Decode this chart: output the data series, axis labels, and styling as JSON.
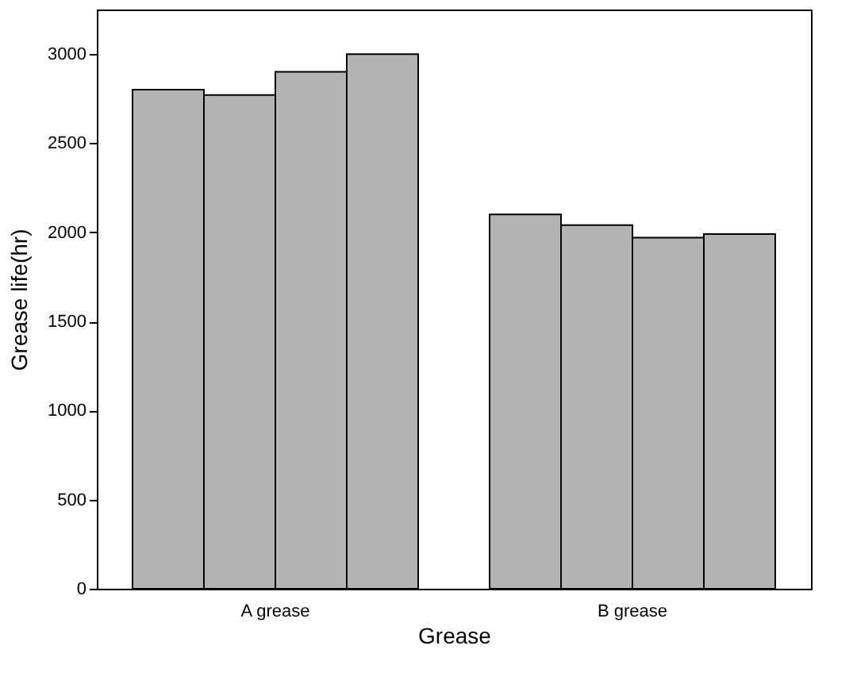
{
  "chart_data": {
    "type": "bar",
    "xlabel": "Grease",
    "ylabel": "Grease life(hr)",
    "categories": [
      "A grease",
      "B grease"
    ],
    "series": [
      {
        "color": "#b4b4b4",
        "values": [
          2800,
          2100
        ]
      },
      {
        "color": "#b4b4b4",
        "values": [
          2770,
          2040
        ]
      },
      {
        "color": "#b4b4b4",
        "values": [
          2900,
          1970
        ]
      },
      {
        "color": "#b4b4b4",
        "values": [
          3000,
          1990
        ]
      }
    ],
    "ylim": [
      0,
      3250
    ],
    "yticks": [
      0,
      500,
      1000,
      1500,
      2000,
      2500,
      3000
    ],
    "grid": false,
    "legend": false
  }
}
